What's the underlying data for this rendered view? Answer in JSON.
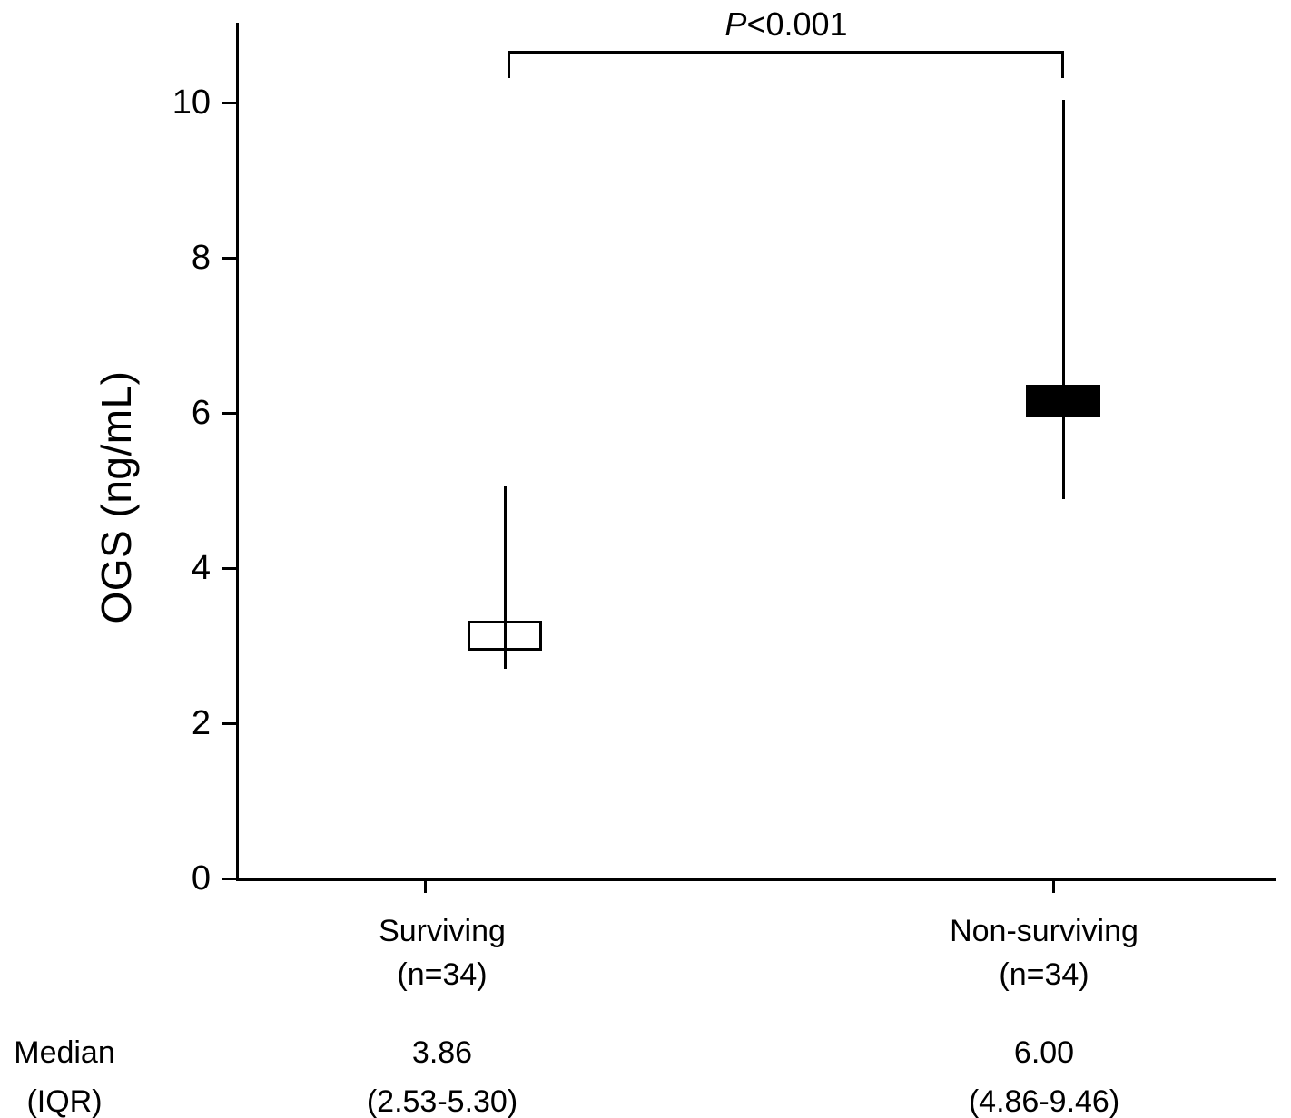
{
  "chart_data": {
    "type": "box",
    "title": "",
    "ylabel": "OGS (ng/mL)",
    "xlabel": "",
    "ylim": [
      0,
      11
    ],
    "yticks": [
      0,
      2,
      4,
      6,
      8,
      10
    ],
    "grid": false,
    "significance": {
      "label": "P<0.001",
      "p_symbol": "P",
      "p_comparison": "<0.001",
      "spans_groups": [
        "Surviving",
        "Non-surviving"
      ]
    },
    "groups": [
      {
        "label": "Surviving",
        "n_label": "(n=34)",
        "n": 34,
        "median": 3.86,
        "iqr_low": 2.53,
        "iqr_high": 5.3,
        "median_text": "3.86",
        "iqr_text": "(2.53-5.30)",
        "whisker_low": 2.7,
        "whisker_high": 5.05,
        "box_low": 2.94,
        "box_high": 3.32,
        "fill": "#ffffff"
      },
      {
        "label": "Non-surviving",
        "n_label": "(n=34)",
        "n": 34,
        "median": 6.0,
        "iqr_low": 4.86,
        "iqr_high": 9.46,
        "median_text": "6.00",
        "iqr_text": "(4.86-9.46)",
        "whisker_low": 4.89,
        "whisker_high": 10.03,
        "box_low": 5.94,
        "box_high": 6.36,
        "fill": "#000000"
      }
    ],
    "stats_rows": {
      "row1_label": "Median",
      "row2_label": "(IQR)"
    },
    "colors": {
      "axis": "#000000",
      "surviving_box": "#ffffff",
      "non_surviving_box": "#000000"
    }
  }
}
